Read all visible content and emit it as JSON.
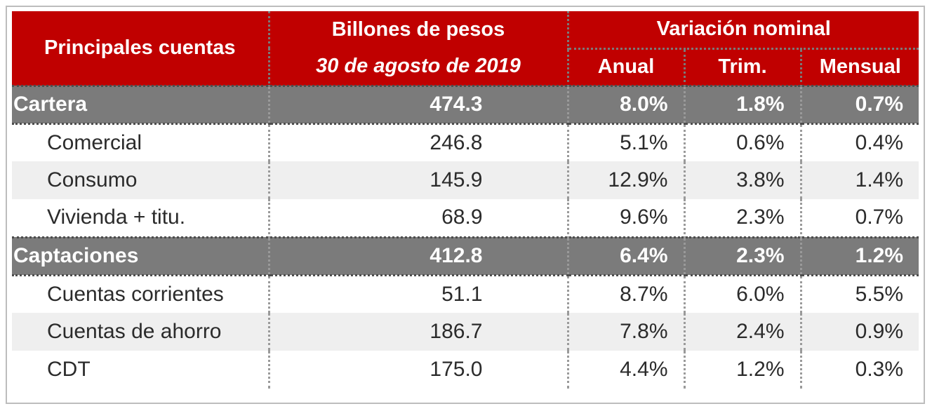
{
  "header": {
    "col1": "Principales cuentas",
    "col2_top": "Billones de pesos",
    "col2_bottom": "30 de agosto de 2019",
    "variation": "Variación nominal",
    "anual": "Anual",
    "trim": "Trim.",
    "mensual": "Mensual"
  },
  "rows": [
    {
      "label": "Cartera",
      "value": "474.3",
      "anual": "8.0%",
      "trim": "1.8%",
      "mensual": "0.7%"
    },
    {
      "label": "Comercial",
      "value": "246.8",
      "anual": "5.1%",
      "trim": "0.6%",
      "mensual": "0.4%"
    },
    {
      "label": "Consumo",
      "value": "145.9",
      "anual": "12.9%",
      "trim": "3.8%",
      "mensual": "1.4%"
    },
    {
      "label": "Vivienda + titu.",
      "value": "68.9",
      "anual": "9.6%",
      "trim": "2.3%",
      "mensual": "0.7%"
    },
    {
      "label": "Captaciones",
      "value": "412.8",
      "anual": "6.4%",
      "trim": "2.3%",
      "mensual": "1.2%"
    },
    {
      "label": "Cuentas corrientes",
      "value": "51.1",
      "anual": "8.7%",
      "trim": "6.0%",
      "mensual": "5.5%"
    },
    {
      "label": "Cuentas de ahorro",
      "value": "186.7",
      "anual": "7.8%",
      "trim": "2.4%",
      "mensual": "0.9%"
    },
    {
      "label": "CDT",
      "value": "175.0",
      "anual": "4.4%",
      "trim": "1.2%",
      "mensual": "0.3%"
    }
  ],
  "colors": {
    "header_red": "#c00000",
    "group_gray": "#7b7b7b",
    "alt_row": "#efefef"
  }
}
